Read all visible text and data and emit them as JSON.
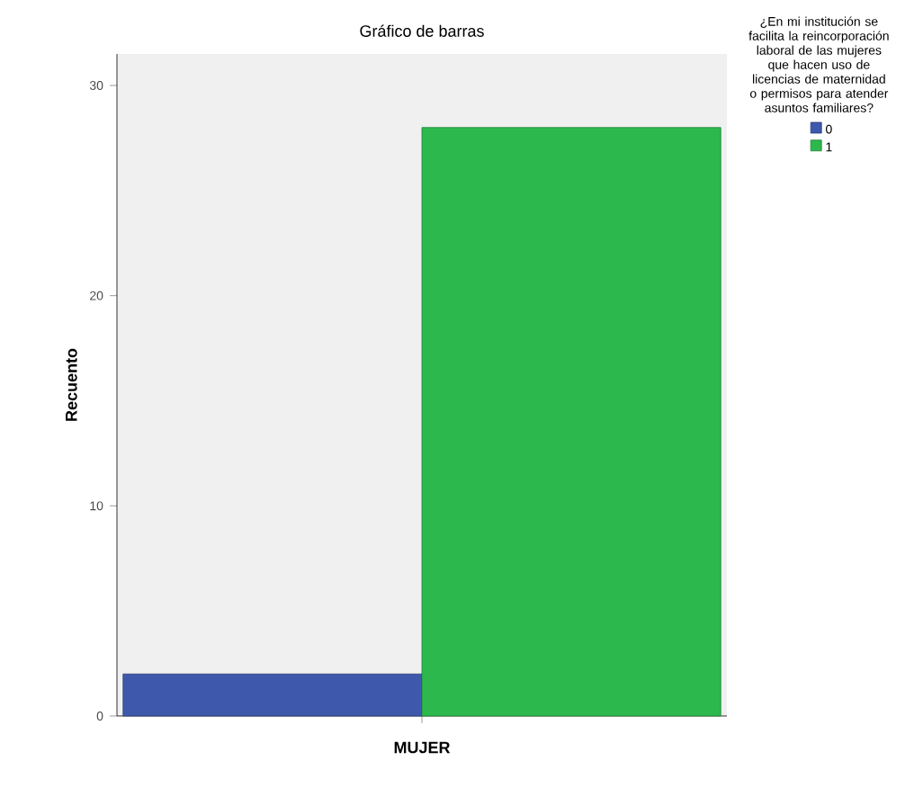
{
  "chart_data": {
    "type": "bar",
    "title": "Gráfico de barras",
    "xlabel": "MUJER",
    "ylabel": "Recuento",
    "legend_title": "¿En mi institución se facilita la reincorporación laboral de las mujeres que hacen uso de licencias de maternidad o permisos para atender asuntos familiares?",
    "categories": [
      null
    ],
    "series": [
      {
        "name": "0",
        "color": "#3e58ac",
        "values": [
          2
        ]
      },
      {
        "name": "1",
        "color": "#2db84d",
        "values": [
          28
        ]
      }
    ],
    "ylim": [
      0,
      31.5
    ],
    "yticks": [
      0,
      10,
      20,
      30
    ],
    "grid": false,
    "legend": "right"
  }
}
